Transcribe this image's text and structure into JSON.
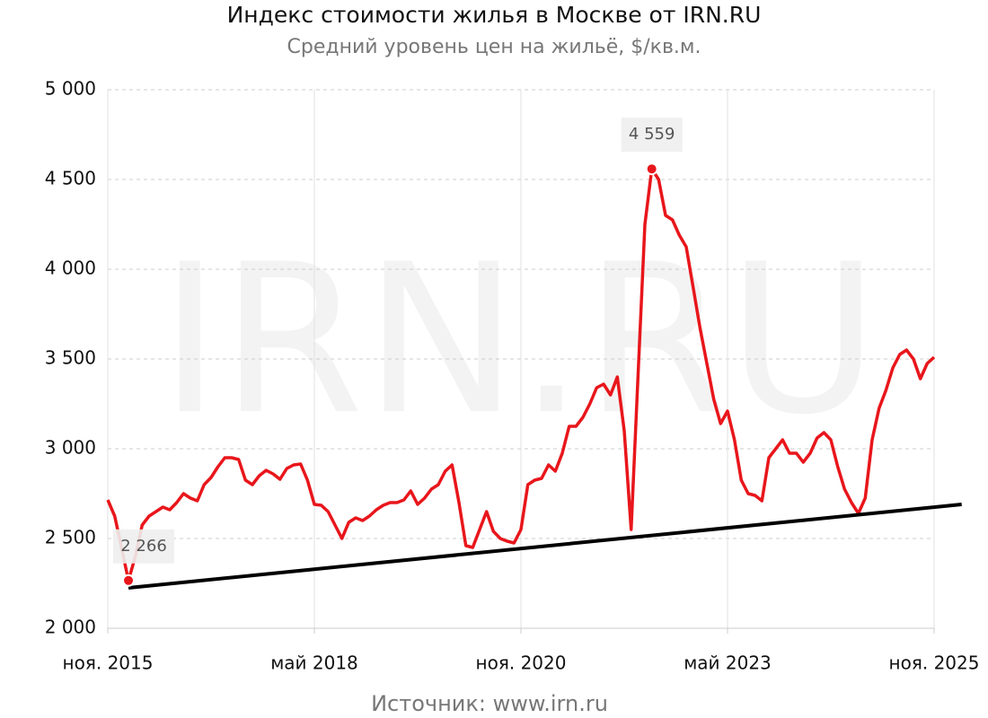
{
  "chart_data": {
    "type": "line",
    "title": "Индекс стоимости жилья в Москве от IRN.RU",
    "subtitle": "Средний уровень цен на жильё, $/кв.м.",
    "source": "Источник: www.irn.ru",
    "watermark": "IRN.RU",
    "x": [
      "2015-11",
      "2015-12",
      "2016-01",
      "2016-02",
      "2016-03",
      "2016-04",
      "2016-05",
      "2016-06",
      "2016-07",
      "2016-08",
      "2016-09",
      "2016-10",
      "2016-11",
      "2016-12",
      "2017-01",
      "2017-02",
      "2017-03",
      "2017-04",
      "2017-05",
      "2017-06",
      "2017-07",
      "2017-08",
      "2017-09",
      "2017-10",
      "2017-11",
      "2017-12",
      "2018-01",
      "2018-02",
      "2018-03",
      "2018-04",
      "2018-05",
      "2018-06",
      "2018-07",
      "2018-08",
      "2018-09",
      "2018-10",
      "2018-11",
      "2018-12",
      "2019-01",
      "2019-02",
      "2019-03",
      "2019-04",
      "2019-05",
      "2019-06",
      "2019-07",
      "2019-08",
      "2019-09",
      "2019-10",
      "2019-11",
      "2019-12",
      "2020-01",
      "2020-02",
      "2020-03",
      "2020-04",
      "2020-05",
      "2020-06",
      "2020-07",
      "2020-08",
      "2020-09",
      "2020-10",
      "2020-11",
      "2020-12",
      "2021-01",
      "2021-02",
      "2021-03",
      "2021-04",
      "2021-05",
      "2021-06",
      "2021-07",
      "2021-08",
      "2021-09",
      "2021-10",
      "2021-11",
      "2021-12",
      "2022-01",
      "2022-02",
      "2022-03",
      "2022-04",
      "2022-05",
      "2022-06",
      "2022-07",
      "2022-08",
      "2022-09",
      "2022-10",
      "2022-11",
      "2022-12",
      "2023-01",
      "2023-02",
      "2023-03",
      "2023-04",
      "2023-05",
      "2023-06",
      "2023-07",
      "2023-08",
      "2023-09",
      "2023-10",
      "2023-11",
      "2023-12",
      "2024-01",
      "2024-02",
      "2024-03",
      "2024-04",
      "2024-05",
      "2024-06",
      "2024-07",
      "2024-08",
      "2024-09",
      "2024-10",
      "2024-11",
      "2024-12",
      "2025-01",
      "2025-02",
      "2025-03",
      "2025-04",
      "2025-05",
      "2025-06",
      "2025-07",
      "2025-08",
      "2025-09",
      "2025-10",
      "2025-11"
    ],
    "series": [
      {
        "name": "Индекс стоимости жилья",
        "color": "#e8161b",
        "values": [
          2715,
          2625,
          2450,
          2266,
          2400,
          2575,
          2625,
          2650,
          2675,
          2660,
          2700,
          2750,
          2725,
          2710,
          2800,
          2840,
          2900,
          2950,
          2950,
          2940,
          2825,
          2800,
          2850,
          2880,
          2860,
          2830,
          2890,
          2910,
          2915,
          2825,
          2690,
          2685,
          2650,
          2575,
          2500,
          2590,
          2615,
          2600,
          2625,
          2660,
          2685,
          2700,
          2700,
          2715,
          2765,
          2690,
          2725,
          2775,
          2800,
          2875,
          2910,
          2700,
          2460,
          2450,
          2550,
          2650,
          2540,
          2500,
          2485,
          2475,
          2550,
          2800,
          2825,
          2835,
          2910,
          2875,
          2975,
          3125,
          3125,
          3175,
          3250,
          3340,
          3360,
          3300,
          3400,
          3100,
          2550,
          3400,
          4250,
          4559,
          4500,
          4300,
          4275,
          4190,
          4125,
          3900,
          3675,
          3475,
          3275,
          3140,
          3210,
          3050,
          2825,
          2750,
          2740,
          2710,
          2950,
          3000,
          3050,
          2975,
          2975,
          2925,
          2975,
          3060,
          3090,
          3050,
          2900,
          2775,
          2700,
          2640,
          2725,
          3050,
          3225,
          3325,
          3450,
          3525,
          3550,
          3500,
          3390,
          3475,
          3510
        ],
        "value_labels": [
          null,
          null,
          null,
          "2 266",
          null,
          null,
          null,
          null,
          null,
          null,
          null,
          null,
          null,
          null,
          null,
          null,
          null,
          null,
          null,
          null,
          null,
          null,
          null,
          null,
          null,
          null,
          null,
          null,
          null,
          null,
          null,
          null,
          null,
          null,
          null,
          null,
          null,
          null,
          null,
          null,
          null,
          null,
          null,
          null,
          null,
          null,
          null,
          null,
          null,
          null,
          null,
          null,
          null,
          null,
          null,
          null,
          null,
          null,
          null,
          null,
          null,
          null,
          null,
          null,
          null,
          null,
          null,
          null,
          null,
          null,
          null,
          null,
          null,
          null,
          null,
          null,
          null,
          null,
          null,
          "4 559",
          null,
          null,
          null,
          null,
          null,
          null,
          null,
          null,
          null,
          null,
          null,
          null,
          null,
          null,
          null,
          null,
          null,
          null,
          null,
          null,
          null,
          null,
          null,
          null,
          null,
          null,
          null,
          null,
          null,
          null,
          null,
          null,
          null,
          null,
          null,
          null,
          null,
          null,
          null,
          null,
          null
        ]
      }
    ],
    "trendline": {
      "color": "#000000",
      "x": [
        "2016-02",
        "2026-03"
      ],
      "values": [
        2225,
        2690
      ]
    },
    "xlim": [
      "2015-11",
      "2025-11"
    ],
    "xticks": [
      {
        "value": "2015-11",
        "label": "ноя. 2015"
      },
      {
        "value": "2018-05",
        "label": "май 2018"
      },
      {
        "value": "2020-11",
        "label": "ноя. 2020"
      },
      {
        "value": "2023-05",
        "label": "май 2023"
      },
      {
        "value": "2025-11",
        "label": "ноя. 2025"
      }
    ],
    "ylim": [
      2000,
      5000
    ],
    "yticks": [
      {
        "value": 2000,
        "label": "2 000"
      },
      {
        "value": 2500,
        "label": "2 500"
      },
      {
        "value": 3000,
        "label": "3 000"
      },
      {
        "value": 3500,
        "label": "3 500"
      },
      {
        "value": 4000,
        "label": "4 000"
      },
      {
        "value": 4500,
        "label": "4 500"
      },
      {
        "value": 5000,
        "label": "5 000"
      }
    ],
    "grid": true
  }
}
